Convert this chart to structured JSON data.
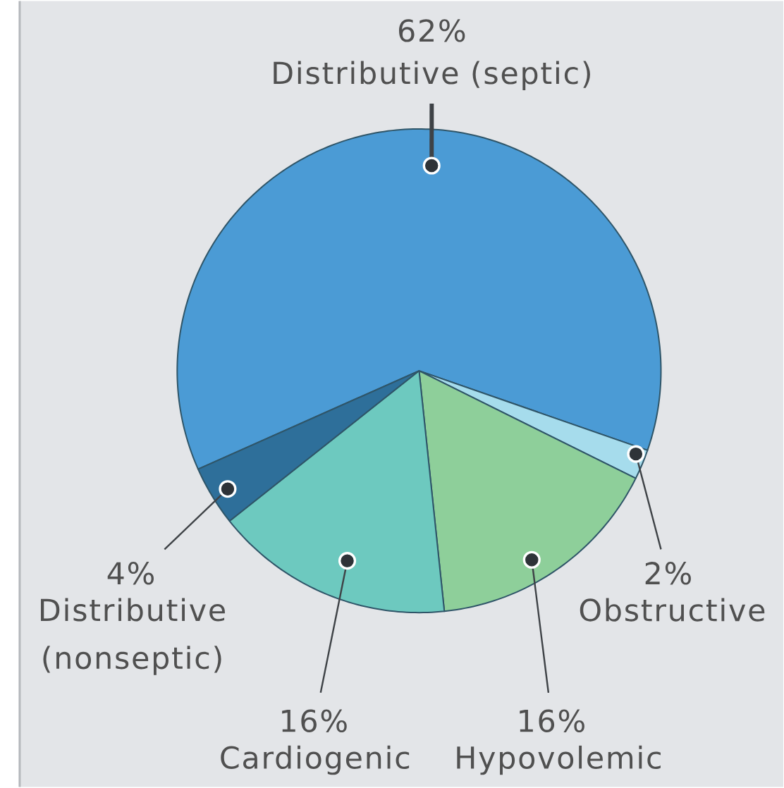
{
  "chart_data": {
    "type": "pie",
    "categories": [
      "Distributive (septic)",
      "Obstructive",
      "Hypovolemic",
      "Cardiogenic",
      "Distributive (nonseptic)"
    ],
    "values": [
      62,
      2,
      16,
      16,
      4
    ],
    "value_labels": [
      "62%",
      "2%",
      "16%",
      "16%",
      "4%"
    ],
    "colors": [
      "#4b9bd5",
      "#a6dcec",
      "#8ecf9a",
      "#6dc9bf",
      "#2e6f9a"
    ]
  }
}
